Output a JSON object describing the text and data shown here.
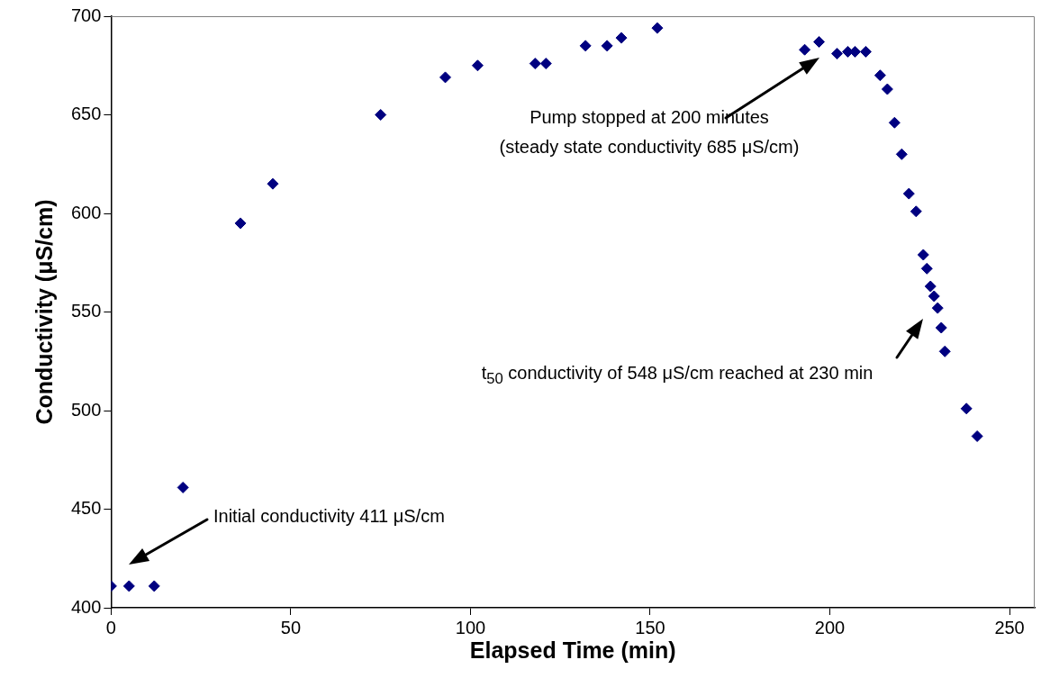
{
  "chart_data": {
    "type": "scatter",
    "xlabel": "Elapsed Time (min)",
    "ylabel": "Conductivity (μS/cm)",
    "series": [
      {
        "color": "#000080",
        "x": [
          0,
          5,
          12,
          20,
          36,
          45,
          75,
          93,
          102,
          118,
          121,
          132,
          138,
          142,
          152,
          193,
          197,
          202,
          205,
          207,
          210,
          214,
          216,
          218,
          220,
          222,
          224,
          226,
          227,
          228,
          229,
          230,
          231,
          232,
          238,
          241
        ],
        "values": [
          411,
          411,
          411,
          461,
          595,
          615,
          650,
          669,
          675,
          676,
          676,
          685,
          685,
          689,
          694,
          683,
          687,
          681,
          682,
          682,
          682,
          670,
          663,
          646,
          630,
          610,
          601,
          579,
          572,
          563,
          558,
          552,
          542,
          530,
          501,
          487
        ]
      }
    ],
    "xlim": [
      0,
      257
    ],
    "xticks": [
      0,
      50,
      100,
      150,
      200,
      250
    ],
    "ylim": [
      400,
      700
    ],
    "yticks": [
      400,
      450,
      500,
      550,
      600,
      650,
      700
    ],
    "grid": false,
    "legend": false,
    "marker": "diamond",
    "annotations": [
      "Initial conductivity 411 μS/cm",
      "Pump stopped at 200 minutes\n(steady state conductivity 685 μS/cm)",
      "t$_{50}$ conductivity of 548 μS/cm reached at 230 min"
    ]
  }
}
